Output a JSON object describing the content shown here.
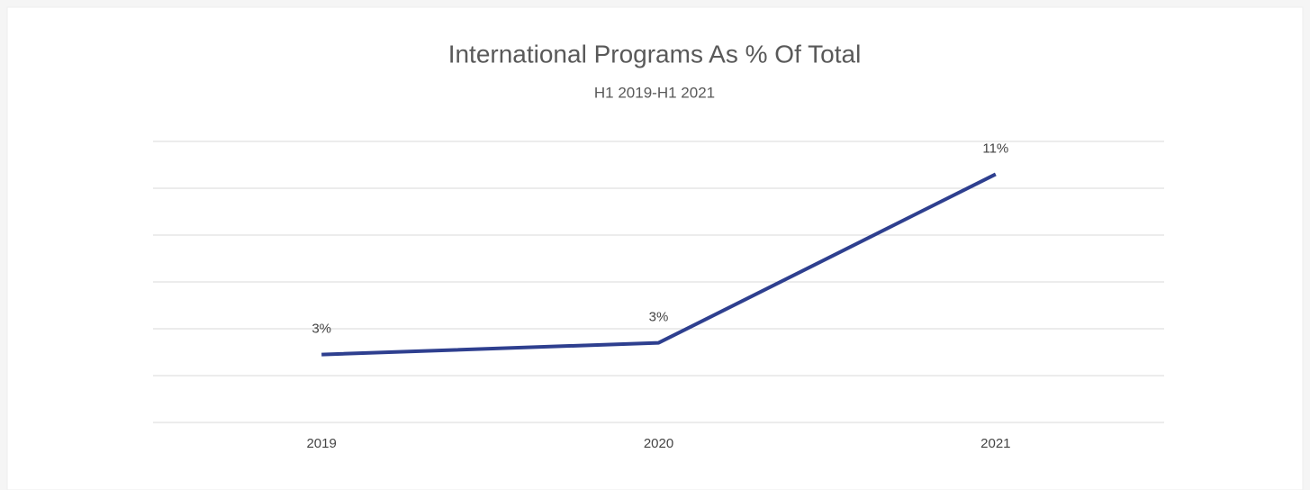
{
  "chart_data": {
    "type": "line",
    "title": "International Programs As % Of Total",
    "subtitle": "H1 2019-H1 2021",
    "categories": [
      "2019",
      "2020",
      "2021"
    ],
    "series": [
      {
        "name": "International Programs",
        "color": "#2e3f8f",
        "values": [
          2.9,
          3.4,
          10.6
        ],
        "value_labels": [
          "3%",
          "3%",
          "11%"
        ]
      }
    ],
    "ylim": [
      0,
      12
    ],
    "yticks": [
      0,
      2,
      4,
      6,
      8,
      10,
      12
    ],
    "grid": true
  }
}
